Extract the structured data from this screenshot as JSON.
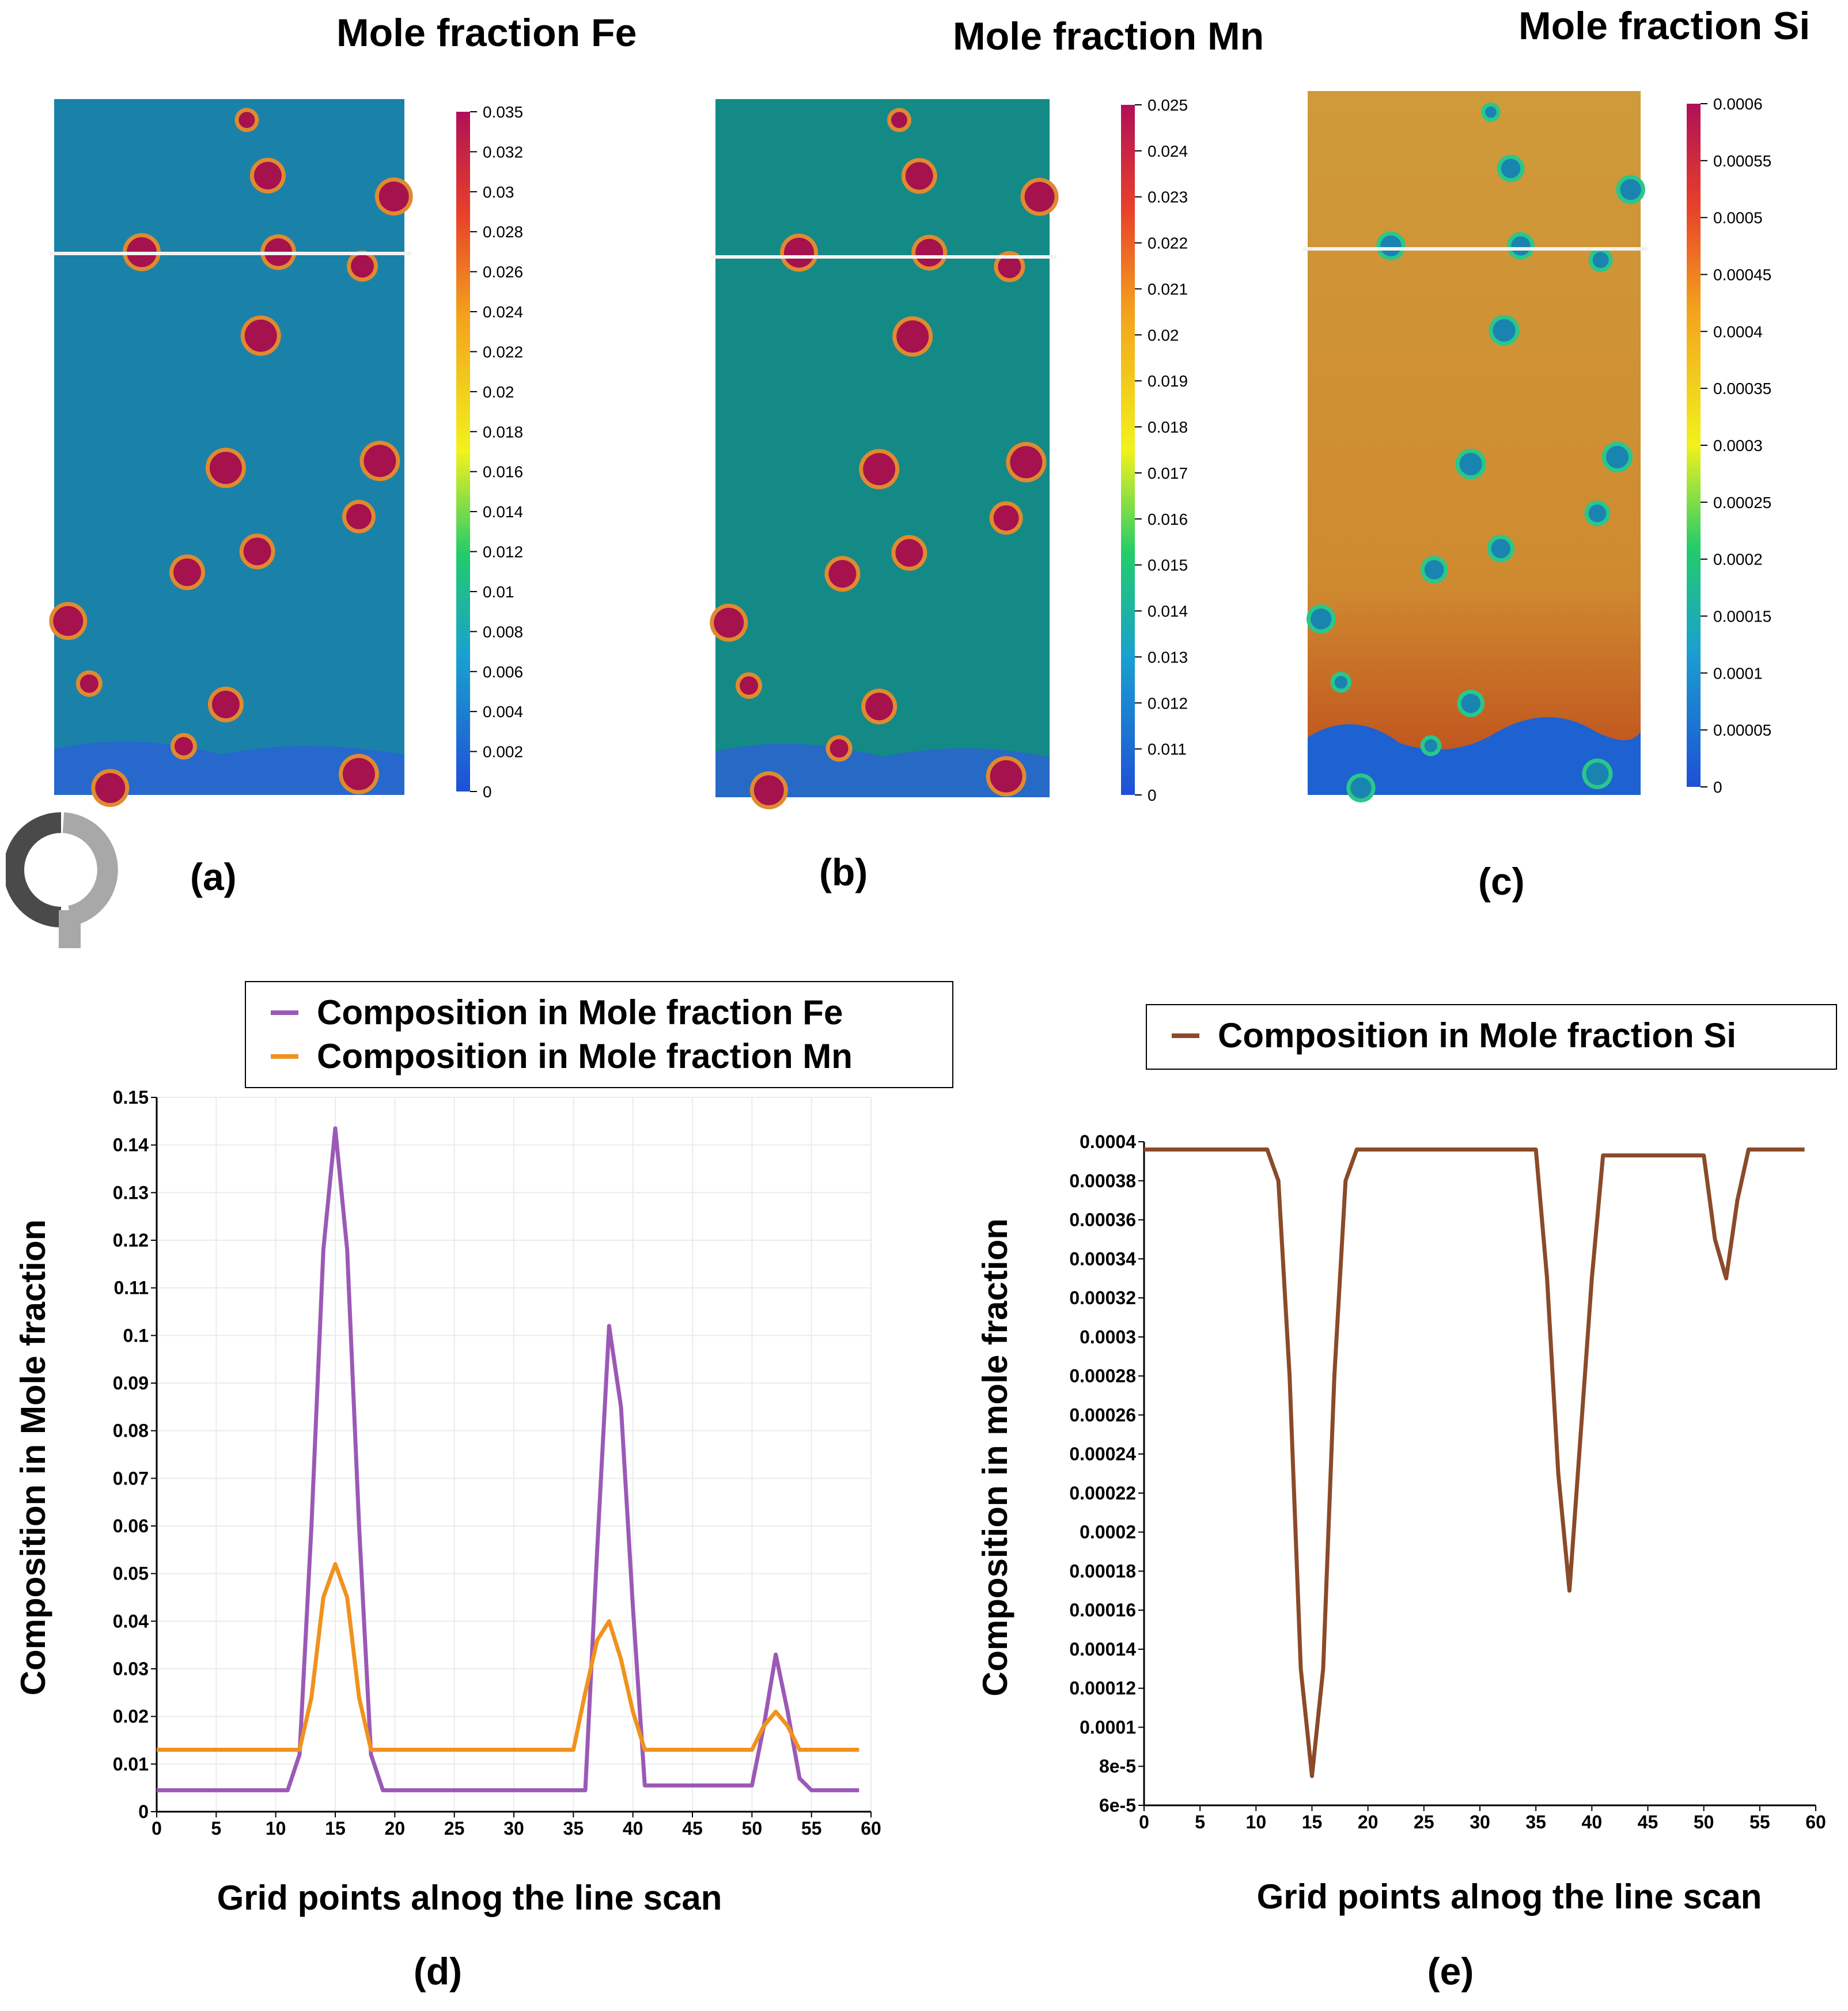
{
  "maps": [
    {
      "title": "Mole fraction Fe",
      "label": "(a)",
      "field": "#1a82a8",
      "particle": "#a5124e",
      "ticks": [
        "0.035",
        "0.032",
        "0.03",
        "0.028",
        "0.026",
        "0.024",
        "0.022",
        "0.02",
        "0.018",
        "0.016",
        "0.014",
        "0.012",
        "0.01",
        "0.008",
        "0.006",
        "0.004",
        "0.002",
        "0"
      ]
    },
    {
      "title": "Mole fraction Mn",
      "label": "(b)",
      "field": "#148a86",
      "particle": "#a5124e",
      "ticks": [
        "0.025",
        "0.024",
        "0.023",
        "0.022",
        "0.021",
        "0.02",
        "0.019",
        "0.018",
        "0.017",
        "0.016",
        "0.015",
        "0.014",
        "0.013",
        "0.012",
        "0.011",
        "0"
      ]
    },
    {
      "title": "Mole fraction Si",
      "label": "(c)",
      "field": "#cd9638",
      "particle": "#1a84b0",
      "ticks": [
        "0.0006",
        "0.00055",
        "0.0005",
        "0.00045",
        "0.0004",
        "0.00035",
        "0.0003",
        "0.00025",
        "0.0002",
        "0.00015",
        "0.0001",
        "0.00005",
        "0"
      ]
    }
  ],
  "chart_data": [
    {
      "type": "line",
      "panel_label": "(d)",
      "xlabel": "Grid points alnog the line scan",
      "ylabel": "Composition in Mole fraction",
      "xlim": [
        0,
        60
      ],
      "ylim": [
        0,
        0.15
      ],
      "xticks": [
        "0",
        "5",
        "10",
        "15",
        "20",
        "25",
        "30",
        "35",
        "40",
        "45",
        "50",
        "55",
        "60"
      ],
      "yticks": [
        "0",
        "0.01",
        "0.02",
        "0.03",
        "0.04",
        "0.05",
        "0.06",
        "0.07",
        "0.08",
        "0.09",
        "0.1",
        "0.11",
        "0.12",
        "0.13",
        "0.14",
        "0.15"
      ],
      "grid": true,
      "legend": "top",
      "series": [
        {
          "name": "Composition in Mole fraction Fe",
          "color": "#9b59b6",
          "x": [
            0,
            11,
            12,
            13,
            14,
            15,
            16,
            17,
            18,
            19,
            36,
            37,
            38,
            39,
            40,
            41,
            50,
            51,
            52,
            53,
            54,
            55,
            59
          ],
          "y": [
            0.0045,
            0.0045,
            0.012,
            0.06,
            0.118,
            0.1435,
            0.118,
            0.06,
            0.012,
            0.0045,
            0.0045,
            0.055,
            0.102,
            0.085,
            0.043,
            0.0055,
            0.0055,
            0.018,
            0.033,
            0.021,
            0.007,
            0.0045,
            0.0045
          ]
        },
        {
          "name": "Composition in Mole fraction Mn",
          "color": "#f0921e",
          "x": [
            0,
            12,
            13,
            14,
            15,
            16,
            17,
            18,
            35,
            36,
            37,
            38,
            39,
            40,
            41,
            50,
            51,
            52,
            53,
            54,
            59
          ],
          "y": [
            0.013,
            0.013,
            0.024,
            0.045,
            0.052,
            0.045,
            0.024,
            0.013,
            0.013,
            0.025,
            0.036,
            0.04,
            0.032,
            0.021,
            0.013,
            0.013,
            0.018,
            0.021,
            0.018,
            0.013,
            0.013
          ]
        }
      ]
    },
    {
      "type": "line",
      "panel_label": "(e)",
      "xlabel": "Grid points alnog the line scan",
      "ylabel": "Composition in mole fraction",
      "xlim": [
        0,
        60
      ],
      "ylim": [
        6e-05,
        0.0004
      ],
      "xticks": [
        "0",
        "5",
        "10",
        "15",
        "20",
        "25",
        "30",
        "35",
        "40",
        "45",
        "50",
        "55",
        "60"
      ],
      "yticks": [
        "6e-5",
        "8e-5",
        "0.0001",
        "0.00012",
        "0.00014",
        "0.00016",
        "0.00018",
        "0.0002",
        "0.00022",
        "0.00024",
        "0.00026",
        "0.00028",
        "0.0003",
        "0.00032",
        "0.00034",
        "0.00036",
        "0.00038",
        "0.0004"
      ],
      "grid": false,
      "legend": "top",
      "series": [
        {
          "name": "Composition in Mole fraction Si",
          "color": "#8b4a2a",
          "x": [
            0,
            11,
            12,
            13,
            14,
            15,
            16,
            17,
            18,
            19,
            35,
            36,
            37,
            38,
            39,
            40,
            41,
            50,
            51,
            52,
            53,
            54,
            59
          ],
          "y": [
            0.000396,
            0.000396,
            0.00038,
            0.00028,
            0.00013,
            7.5e-05,
            0.00013,
            0.00028,
            0.00038,
            0.000396,
            0.000396,
            0.00033,
            0.00023,
            0.00017,
            0.00025,
            0.00033,
            0.000393,
            0.000393,
            0.00035,
            0.00033,
            0.00037,
            0.000396,
            0.000396
          ]
        }
      ]
    }
  ]
}
